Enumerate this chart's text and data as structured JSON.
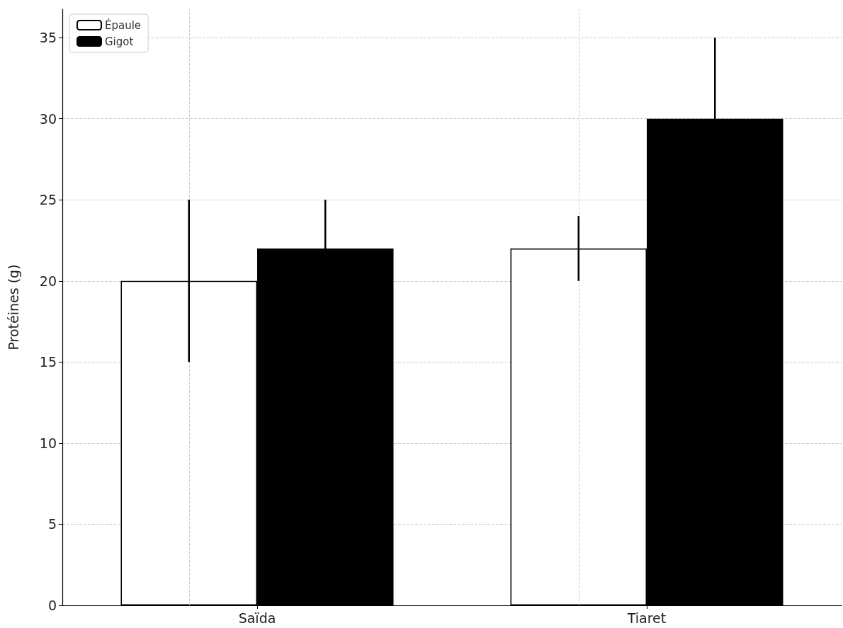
{
  "chart_data": {
    "type": "bar",
    "ylabel": "Protéines (g)",
    "categories": [
      "Saïda",
      "Tiaret"
    ],
    "series": [
      {
        "name": "Épaule",
        "color": "#ffffff",
        "values": [
          20,
          22
        ],
        "errors": [
          5,
          2
        ]
      },
      {
        "name": "Gigot",
        "color": "#000000",
        "values": [
          22,
          30
        ],
        "errors": [
          3,
          5
        ]
      }
    ],
    "ylim": [
      0,
      36.75
    ],
    "yticks": [
      0,
      5,
      10,
      15,
      20,
      25,
      30,
      35
    ],
    "grid": true,
    "legend": "top left"
  }
}
